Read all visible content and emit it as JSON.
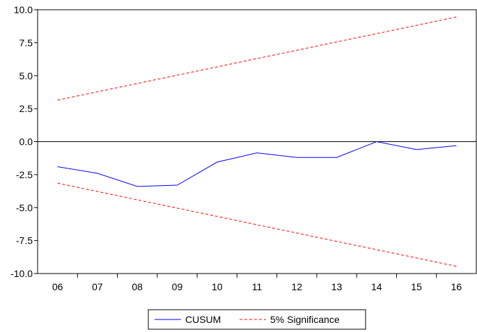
{
  "chart_data": {
    "type": "line",
    "title": "",
    "xlabel": "",
    "ylabel": "",
    "categories": [
      "06",
      "07",
      "08",
      "09",
      "10",
      "11",
      "12",
      "13",
      "14",
      "15",
      "16"
    ],
    "ylim": [
      -10.0,
      10.0
    ],
    "yticks": [
      "10.0",
      "7.5",
      "5.0",
      "2.5",
      "0.0",
      "-2.5",
      "-5.0",
      "-7.5",
      "-10.0"
    ],
    "ytick_values": [
      10.0,
      7.5,
      5.0,
      2.5,
      0.0,
      -2.5,
      -5.0,
      -7.5,
      -10.0
    ],
    "zero_line": true,
    "grid": false,
    "legend_position": "bottom",
    "series": [
      {
        "name": "CUSUM",
        "color": "#0000ff",
        "style": "solid",
        "values": [
          -1.9,
          -2.4,
          -3.4,
          -3.3,
          -1.55,
          -0.85,
          -1.2,
          -1.2,
          0.0,
          -0.6,
          -0.3
        ]
      },
      {
        "name": "5% Significance",
        "color": "#ff0000",
        "style": "dashed",
        "values": [
          3.15,
          3.78,
          4.41,
          5.04,
          5.67,
          6.3,
          6.93,
          7.56,
          8.19,
          8.82,
          9.45
        ]
      },
      {
        "name": "",
        "color": "#ff0000",
        "style": "dashed",
        "values": [
          -3.15,
          -3.78,
          -4.41,
          -5.04,
          -5.67,
          -6.3,
          -6.93,
          -7.56,
          -8.19,
          -8.82,
          -9.45
        ]
      }
    ],
    "legend": {
      "entries": [
        {
          "label": "CUSUM",
          "color": "#0000ff",
          "style": "solid"
        },
        {
          "label": "5% Significance",
          "color": "#ff0000",
          "style": "dashed"
        }
      ]
    }
  }
}
